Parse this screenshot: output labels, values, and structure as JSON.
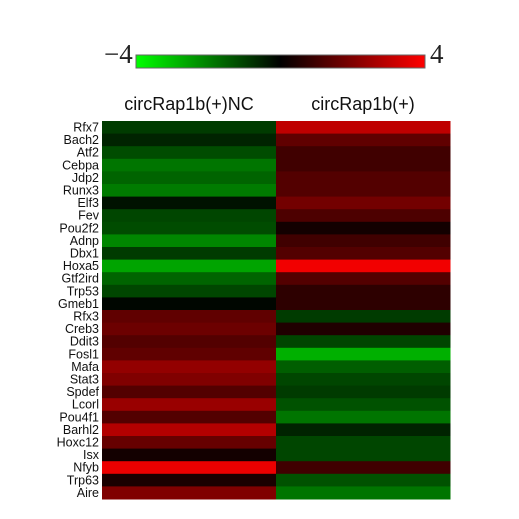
{
  "chart_data": {
    "type": "heatmap",
    "colorbar": {
      "min": -4,
      "max": 4,
      "min_label": "−4",
      "max_label": "4",
      "low_color": "#00ff00",
      "mid_color": "#000000",
      "high_color": "#ff0000"
    },
    "columns": [
      "circRap1b(+)NC",
      "circRap1b(+)"
    ],
    "rows": [
      "Rfx7",
      "Bach2",
      "Atf2",
      "Cebpa",
      "Jdp2",
      "Runx3",
      "Elf3",
      "Fev",
      "Pou2f2",
      "Adnp",
      "Dbx1",
      "Hoxa5",
      "Gtf2ird",
      "Trp53",
      "Gmeb1",
      "Rfx3",
      "Creb3",
      "Ddit3",
      "Fosl1",
      "Mafa",
      "Stat3",
      "Spdef",
      "Lcorl",
      "Pou4f1",
      "Barhl2",
      "Hoxc12",
      "Isx",
      "Nfyb",
      "Trp63",
      "Aire"
    ],
    "highlighted_row": "Hoxa5",
    "highlight_color": "#ff0000",
    "values": [
      [
        -1.0,
        3.0
      ],
      [
        -0.6,
        1.5
      ],
      [
        -1.3,
        1.0
      ],
      [
        -2.0,
        1.0
      ],
      [
        -1.7,
        1.3
      ],
      [
        -2.1,
        1.3
      ],
      [
        -0.3,
        1.8
      ],
      [
        -1.2,
        1.2
      ],
      [
        -1.3,
        0.3
      ],
      [
        -2.3,
        1.0
      ],
      [
        -1.0,
        1.3
      ],
      [
        -2.8,
        3.8
      ],
      [
        -1.7,
        1.3
      ],
      [
        -1.2,
        0.7
      ],
      [
        -0.1,
        0.7
      ],
      [
        1.5,
        -1.0
      ],
      [
        1.7,
        0.5
      ],
      [
        1.3,
        -1.2
      ],
      [
        1.5,
        -3.0
      ],
      [
        2.3,
        -1.6
      ],
      [
        2.0,
        -1.2
      ],
      [
        1.3,
        -1.0
      ],
      [
        2.4,
        -1.4
      ],
      [
        1.3,
        -2.0
      ],
      [
        2.8,
        -0.6
      ],
      [
        1.6,
        -1.2
      ],
      [
        0.3,
        -1.2
      ],
      [
        3.7,
        1.0
      ],
      [
        0.4,
        -1.4
      ],
      [
        2.0,
        -2.0
      ]
    ]
  }
}
